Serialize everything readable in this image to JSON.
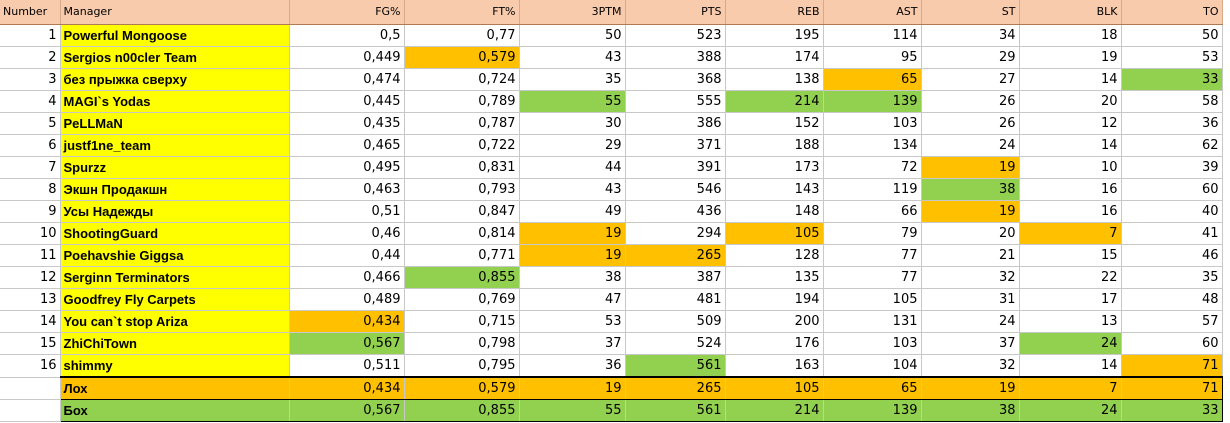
{
  "columns": {
    "number": "Number",
    "manager": "Manager",
    "stats": [
      "FG%",
      "FT%",
      "3PTM",
      "PTS",
      "REB",
      "AST",
      "ST",
      "BLK",
      "TO"
    ]
  },
  "highlight_colors": {
    "worst": "#ffc000",
    "best": "#92d050",
    "manager": "#ffff00",
    "header": "#f8cbad"
  },
  "rows": [
    {
      "number": "1",
      "manager": "Powerful Mongoose",
      "values": [
        "0,5",
        "0,77",
        "50",
        "523",
        "195",
        "114",
        "34",
        "18",
        "50"
      ],
      "hl": [
        "",
        "",
        "",
        "",
        "",
        "",
        "",
        "",
        ""
      ]
    },
    {
      "number": "2",
      "manager": "Sergios n00cler Team",
      "values": [
        "0,449",
        "0,579",
        "43",
        "388",
        "174",
        "95",
        "29",
        "19",
        "53"
      ],
      "hl": [
        "",
        "worst",
        "",
        "",
        "",
        "",
        "",
        "",
        ""
      ]
    },
    {
      "number": "3",
      "manager": "без прыжка сверху",
      "values": [
        "0,474",
        "0,724",
        "35",
        "368",
        "138",
        "65",
        "27",
        "14",
        "33"
      ],
      "hl": [
        "",
        "",
        "",
        "",
        "",
        "worst",
        "",
        "",
        "best"
      ]
    },
    {
      "number": "4",
      "manager": "MAGI`s Yodas",
      "values": [
        "0,445",
        "0,789",
        "55",
        "555",
        "214",
        "139",
        "26",
        "20",
        "58"
      ],
      "hl": [
        "",
        "",
        "best",
        "",
        "best",
        "best",
        "",
        "",
        ""
      ]
    },
    {
      "number": "5",
      "manager": "PeLLMaN",
      "values": [
        "0,435",
        "0,787",
        "30",
        "386",
        "152",
        "103",
        "26",
        "12",
        "36"
      ],
      "hl": [
        "",
        "",
        "",
        "",
        "",
        "",
        "",
        "",
        ""
      ]
    },
    {
      "number": "6",
      "manager": "justf1ne_team",
      "values": [
        "0,465",
        "0,722",
        "29",
        "371",
        "188",
        "134",
        "24",
        "14",
        "62"
      ],
      "hl": [
        "",
        "",
        "",
        "",
        "",
        "",
        "",
        "",
        ""
      ]
    },
    {
      "number": "7",
      "manager": "Spurzz",
      "values": [
        "0,495",
        "0,831",
        "44",
        "391",
        "173",
        "72",
        "19",
        "10",
        "39"
      ],
      "hl": [
        "",
        "",
        "",
        "",
        "",
        "",
        "worst",
        "",
        ""
      ]
    },
    {
      "number": "8",
      "manager": "Экшн Продакшн",
      "values": [
        "0,463",
        "0,793",
        "43",
        "546",
        "143",
        "119",
        "38",
        "16",
        "60"
      ],
      "hl": [
        "",
        "",
        "",
        "",
        "",
        "",
        "best",
        "",
        ""
      ]
    },
    {
      "number": "9",
      "manager": "Усы Надежды",
      "values": [
        "0,51",
        "0,847",
        "49",
        "436",
        "148",
        "66",
        "19",
        "16",
        "40"
      ],
      "hl": [
        "",
        "",
        "",
        "",
        "",
        "",
        "worst",
        "",
        ""
      ]
    },
    {
      "number": "10",
      "manager": "ShootingGuard",
      "values": [
        "0,46",
        "0,814",
        "19",
        "294",
        "105",
        "79",
        "20",
        "7",
        "41"
      ],
      "hl": [
        "",
        "",
        "worst",
        "",
        "worst",
        "",
        "",
        "worst",
        ""
      ]
    },
    {
      "number": "11",
      "manager": "Poehavshie Giggsa",
      "values": [
        "0,44",
        "0,771",
        "19",
        "265",
        "128",
        "77",
        "21",
        "15",
        "46"
      ],
      "hl": [
        "",
        "",
        "worst",
        "worst",
        "",
        "",
        "",
        "",
        ""
      ]
    },
    {
      "number": "12",
      "manager": "Serginn Terminators",
      "values": [
        "0,466",
        "0,855",
        "38",
        "387",
        "135",
        "77",
        "32",
        "22",
        "35"
      ],
      "hl": [
        "",
        "best",
        "",
        "",
        "",
        "",
        "",
        "",
        ""
      ]
    },
    {
      "number": "13",
      "manager": "Goodfrey Fly Carpets",
      "values": [
        "0,489",
        "0,769",
        "47",
        "481",
        "194",
        "105",
        "31",
        "17",
        "48"
      ],
      "hl": [
        "",
        "",
        "",
        "",
        "",
        "",
        "",
        "",
        ""
      ]
    },
    {
      "number": "14",
      "manager": "You can`t stop Ariza",
      "values": [
        "0,434",
        "0,715",
        "53",
        "509",
        "200",
        "131",
        "24",
        "13",
        "57"
      ],
      "hl": [
        "worst",
        "",
        "",
        "",
        "",
        "",
        "",
        "",
        ""
      ]
    },
    {
      "number": "15",
      "manager": "ZhiChiTown",
      "values": [
        "0,567",
        "0,798",
        "37",
        "524",
        "176",
        "103",
        "37",
        "24",
        "60"
      ],
      "hl": [
        "best",
        "",
        "",
        "",
        "",
        "",
        "",
        "best",
        ""
      ]
    },
    {
      "number": "16",
      "manager": "shimmy",
      "values": [
        "0,511",
        "0,795",
        "36",
        "561",
        "163",
        "104",
        "32",
        "14",
        "71"
      ],
      "hl": [
        "",
        "",
        "",
        "best",
        "",
        "",
        "",
        "",
        "worst"
      ]
    }
  ],
  "summary": [
    {
      "kind": "worst",
      "label": "Лох",
      "values": [
        "0,434",
        "0,579",
        "19",
        "265",
        "105",
        "65",
        "19",
        "7",
        "71"
      ]
    },
    {
      "kind": "best",
      "label": "Бох",
      "values": [
        "0,567",
        "0,855",
        "55",
        "561",
        "214",
        "139",
        "38",
        "24",
        "33"
      ]
    }
  ]
}
